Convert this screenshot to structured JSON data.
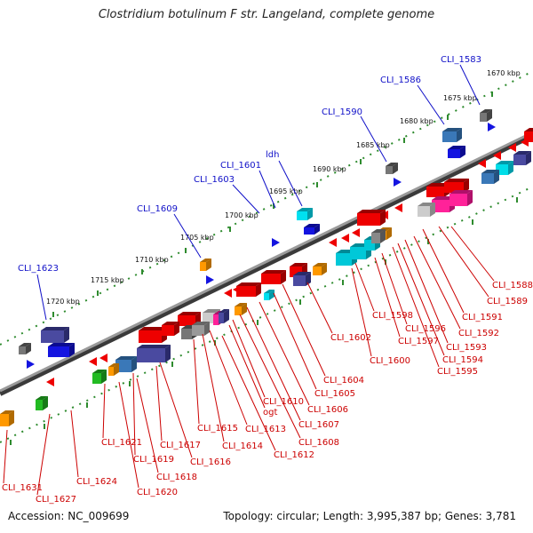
{
  "title": "Clostridium botulinum F str. Langeland, complete genome",
  "accession": "Accession: NC_009699",
  "summary": "Topology: circular; Length: 3,995,387 bp; Genes: 3,781",
  "colors": {
    "forward_label": "#1010c8",
    "reverse_label": "#cc0000",
    "backbone": "#808080"
  },
  "kbp_ticks": [
    "1670 kbp",
    "1675 kbp",
    "1680 kbp",
    "1685 kbp",
    "1690 kbp",
    "1695 kbp",
    "1700 kbp",
    "1705 kbp",
    "1710 kbp",
    "1715 kbp",
    "1720 kbp"
  ],
  "forward_labels": [
    "CLI_1583",
    "CLI_1586",
    "CLI_1590",
    "ldh",
    "CLI_1601",
    "CLI_1603",
    "CLI_1609",
    "CLI_1623"
  ],
  "reverse_labels": [
    "CLI_1588",
    "CLI_1589",
    "CLI_1591",
    "CLI_1592",
    "CLI_1593",
    "CLI_1594",
    "CLI_1595",
    "CLI_1596",
    "CLI_1597",
    "CLI_1598",
    "CLI_1600",
    "CLI_1602",
    "CLI_1604",
    "CLI_1605",
    "CLI_1606",
    "CLI_1607",
    "CLI_1608",
    "CLI_1610",
    "ogt",
    "CLI_1612",
    "CLI_1613",
    "CLI_1614",
    "CLI_1615",
    "CLI_1616",
    "CLI_1617",
    "CLI_1618",
    "CLI_1619",
    "CLI_1620",
    "CLI_1621",
    "CLI_1624",
    "CLI_1627",
    "CLI_1631"
  ]
}
